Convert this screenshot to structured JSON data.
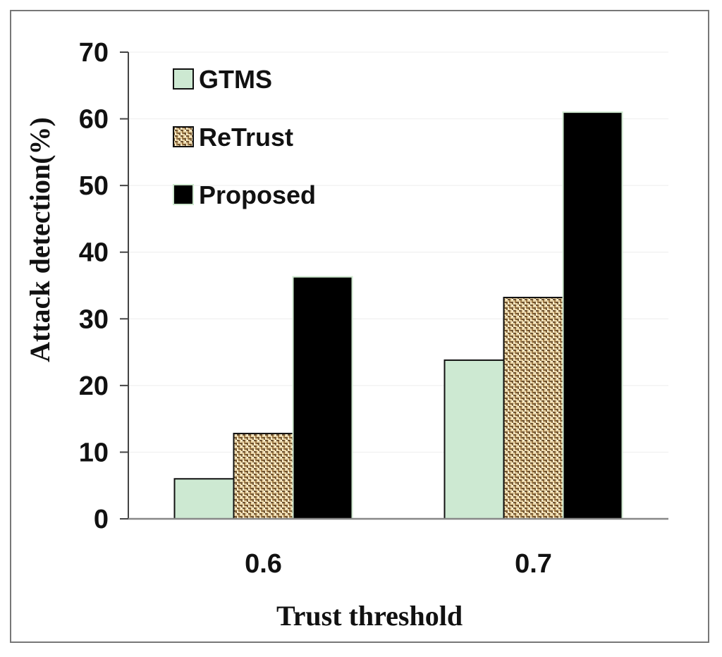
{
  "chart_data": {
    "type": "bar",
    "categories": [
      "0.6",
      "0.7"
    ],
    "series": [
      {
        "name": "GTMS",
        "values": [
          6,
          23.8
        ],
        "color": "#cde9d2",
        "pattern": "solid"
      },
      {
        "name": "ReTrust",
        "values": [
          12.8,
          33.2
        ],
        "color": "#c8a36a",
        "pattern": "woven"
      },
      {
        "name": "Proposed",
        "values": [
          36.3,
          61.0
        ],
        "color": "#000000",
        "pattern": "solid"
      }
    ],
    "xlabel": "Trust threshold",
    "ylabel": "Attack detection(%)",
    "ylim": [
      0,
      70
    ],
    "yticks": [
      0,
      10,
      20,
      30,
      40,
      50,
      60,
      70
    ],
    "grid": true,
    "legend_position": "top-left"
  }
}
